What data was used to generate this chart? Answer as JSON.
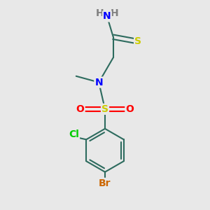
{
  "background_color": "#e8e8e8",
  "bond_color": "#2d6b5e",
  "bond_width": 1.5,
  "atom_colors": {
    "N": "#0000ff",
    "S_thio": "#cccc00",
    "S_sulfonyl": "#cccc00",
    "O": "#ff0000",
    "Cl": "#00cc00",
    "Br": "#cc6600",
    "H": "#808080",
    "C": "#2d6b5e"
  },
  "figsize": [
    3.0,
    3.0
  ],
  "dpi": 100,
  "xlim": [
    0,
    10
  ],
  "ylim": [
    0,
    10
  ]
}
